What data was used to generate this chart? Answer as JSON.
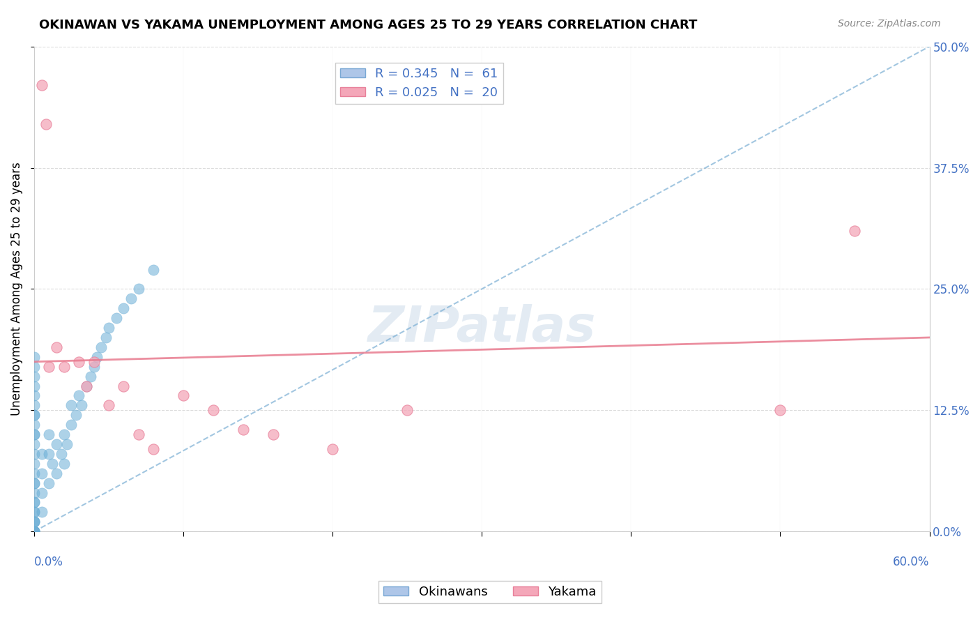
{
  "title": "OKINAWAN VS YAKAMA UNEMPLOYMENT AMONG AGES 25 TO 29 YEARS CORRELATION CHART",
  "source": "Source: ZipAtlas.com",
  "ylabel": "Unemployment Among Ages 25 to 29 years",
  "ytick_labels": [
    "0.0%",
    "12.5%",
    "25.0%",
    "37.5%",
    "50.0%"
  ],
  "ytick_values": [
    0.0,
    0.125,
    0.25,
    0.375,
    0.5
  ],
  "xlim": [
    0.0,
    0.6
  ],
  "ylim": [
    0.0,
    0.5
  ],
  "okinawan_color": "#6baed6",
  "yakama_color": "#f4a7b9",
  "trendline_okinawan_color": "#7bafd4",
  "trendline_yakama_color": "#e87a8e",
  "okinawan_points_x": [
    0.0,
    0.0,
    0.0,
    0.0,
    0.0,
    0.0,
    0.0,
    0.0,
    0.0,
    0.0,
    0.0,
    0.0,
    0.0,
    0.0,
    0.0,
    0.0,
    0.0,
    0.0,
    0.0,
    0.0,
    0.0,
    0.0,
    0.0,
    0.0,
    0.0,
    0.0,
    0.0,
    0.0,
    0.0,
    0.0,
    0.005,
    0.005,
    0.005,
    0.005,
    0.01,
    0.01,
    0.01,
    0.012,
    0.015,
    0.015,
    0.018,
    0.02,
    0.02,
    0.022,
    0.025,
    0.025,
    0.028,
    0.03,
    0.032,
    0.035,
    0.038,
    0.04,
    0.042,
    0.045,
    0.048,
    0.05,
    0.055,
    0.06,
    0.065,
    0.07,
    0.08
  ],
  "okinawan_points_y": [
    0.0,
    0.0,
    0.0,
    0.0,
    0.0,
    0.01,
    0.01,
    0.01,
    0.02,
    0.02,
    0.03,
    0.03,
    0.04,
    0.05,
    0.05,
    0.06,
    0.07,
    0.08,
    0.09,
    0.1,
    0.1,
    0.11,
    0.12,
    0.12,
    0.13,
    0.14,
    0.15,
    0.16,
    0.17,
    0.18,
    0.02,
    0.04,
    0.06,
    0.08,
    0.05,
    0.08,
    0.1,
    0.07,
    0.06,
    0.09,
    0.08,
    0.07,
    0.1,
    0.09,
    0.11,
    0.13,
    0.12,
    0.14,
    0.13,
    0.15,
    0.16,
    0.17,
    0.18,
    0.19,
    0.2,
    0.21,
    0.22,
    0.23,
    0.24,
    0.25,
    0.27
  ],
  "yakama_points_x": [
    0.005,
    0.008,
    0.01,
    0.015,
    0.02,
    0.03,
    0.035,
    0.04,
    0.05,
    0.06,
    0.07,
    0.08,
    0.1,
    0.12,
    0.14,
    0.16,
    0.2,
    0.25,
    0.5,
    0.55
  ],
  "yakama_points_y": [
    0.46,
    0.42,
    0.17,
    0.19,
    0.17,
    0.175,
    0.15,
    0.175,
    0.13,
    0.15,
    0.1,
    0.085,
    0.14,
    0.125,
    0.105,
    0.1,
    0.085,
    0.125,
    0.125,
    0.31
  ],
  "okinawan_trend_x": [
    0.0,
    0.6
  ],
  "okinawan_trend_y_start": 0.0,
  "okinawan_trend_y_end": 0.5,
  "yakama_trend_x": [
    0.0,
    0.6
  ],
  "yakama_trend_y_start": 0.175,
  "yakama_trend_y_end": 0.2
}
